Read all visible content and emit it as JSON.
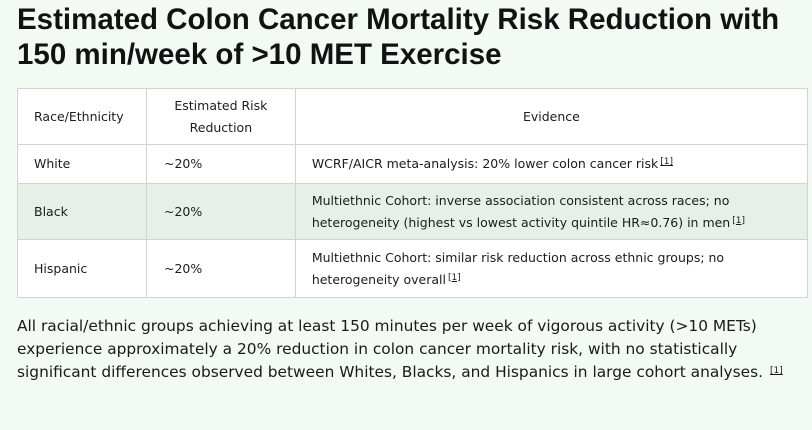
{
  "title": "Estimated Colon Cancer Mortality Risk Reduction with 150 min/week of >10 MET Exercise",
  "table": {
    "headers": [
      "Race/Ethnicity",
      "Estimated Risk Reduction",
      "Evidence"
    ],
    "rows": [
      {
        "race": "White",
        "reduction": "~20%",
        "evidence": "WCRF/AICR meta-analysis: 20% lower colon cancer risk",
        "ref": "[1]"
      },
      {
        "race": "Black",
        "reduction": "~20%",
        "evidence": "Multiethnic Cohort: inverse association consistent across races; no heterogeneity (highest vs lowest activity quintile HR≈0.76) in men",
        "ref": "[1]"
      },
      {
        "race": "Hispanic",
        "reduction": "~20%",
        "evidence": "Multiethnic Cohort: similar risk reduction across ethnic groups; no heterogeneity overall",
        "ref": "[1]"
      }
    ]
  },
  "summary": {
    "text": "All racial/ethnic groups achieving at least 150 minutes per week of vigorous activity (>10 METs) experience approximately a 20% reduction in colon cancer mortality risk, with no statistically significant differences observed between Whites, Blacks, and Hispanics in large cohort analyses.",
    "ref": "[1]"
  }
}
